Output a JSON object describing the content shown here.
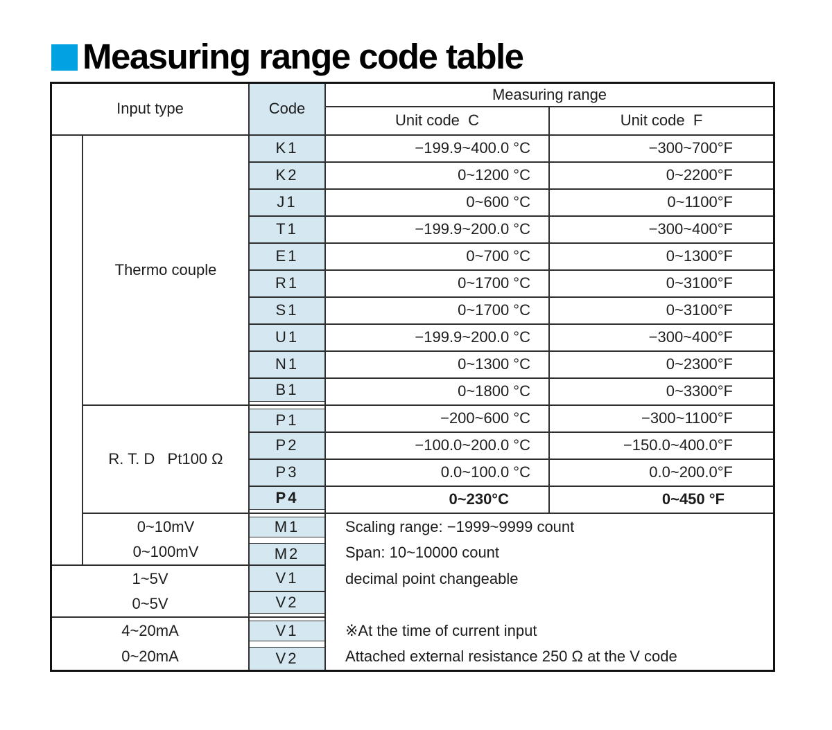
{
  "title": "Measuring range code table",
  "colors": {
    "accent": "#00a2df",
    "code_fill": "#d5e8f1",
    "line": "#2e2e2e"
  },
  "header": {
    "input_type": "Input type",
    "code": "Code",
    "measuring_range": "Measuring range",
    "unit_c": "Unit code  C",
    "unit_f": "Unit code  F"
  },
  "thermocouple": {
    "label": "Thermo couple",
    "rows": [
      {
        "code": "K1",
        "c": "−199.9~400.0 °C",
        "f": "−300~700°F"
      },
      {
        "code": "K2",
        "c": "0~1200 °C",
        "f": "0~2200°F"
      },
      {
        "code": "J1",
        "c": "0~600 °C",
        "f": "0~1100°F"
      },
      {
        "code": "T1",
        "c": "−199.9~200.0 °C",
        "f": "−300~400°F"
      },
      {
        "code": "E1",
        "c": "0~700 °C",
        "f": "0~1300°F"
      },
      {
        "code": "R1",
        "c": "0~1700 °C",
        "f": "0~3100°F"
      },
      {
        "code": "S1",
        "c": "0~1700 °C",
        "f": "0~3100°F"
      },
      {
        "code": "U1",
        "c": "−199.9~200.0 °C",
        "f": "−300~400°F"
      },
      {
        "code": "N1",
        "c": "0~1300 °C",
        "f": "0~2300°F"
      },
      {
        "code": "B1",
        "c": "0~1800 °C",
        "f": "0~3300°F"
      }
    ]
  },
  "rtd": {
    "label": "R. T. D   Pt100 Ω",
    "rows": [
      {
        "code": "P1",
        "c": "−200~600 °C",
        "f": "−300~1100°F"
      },
      {
        "code": "P2",
        "c": "−100.0~200.0 °C",
        "f": "−150.0~400.0°F"
      },
      {
        "code": "P3",
        "c": "0.0~100.0 °C",
        "f": "0.0~200.0°F"
      },
      {
        "code": "P4",
        "c": "0~230°C",
        "f": "0~450 °F"
      }
    ]
  },
  "linear": {
    "rows": [
      {
        "label": "0~10mV",
        "code": "M1"
      },
      {
        "label": "0~100mV",
        "code": "M2"
      },
      {
        "label": "1~5V",
        "code": "V1"
      },
      {
        "label": "0~5V",
        "code": "V2"
      },
      {
        "label": "4~20mA",
        "code": "V1"
      },
      {
        "label": "0~20mA",
        "code": "V2"
      }
    ]
  },
  "notes": {
    "scaling": "Scaling range: −1999~9999 count",
    "span": "Span: 10~10000 count",
    "decimal": "decimal point changeable",
    "current1": "※At the time of current input",
    "current2": "Attached external resistance 250 Ω at the V code"
  }
}
